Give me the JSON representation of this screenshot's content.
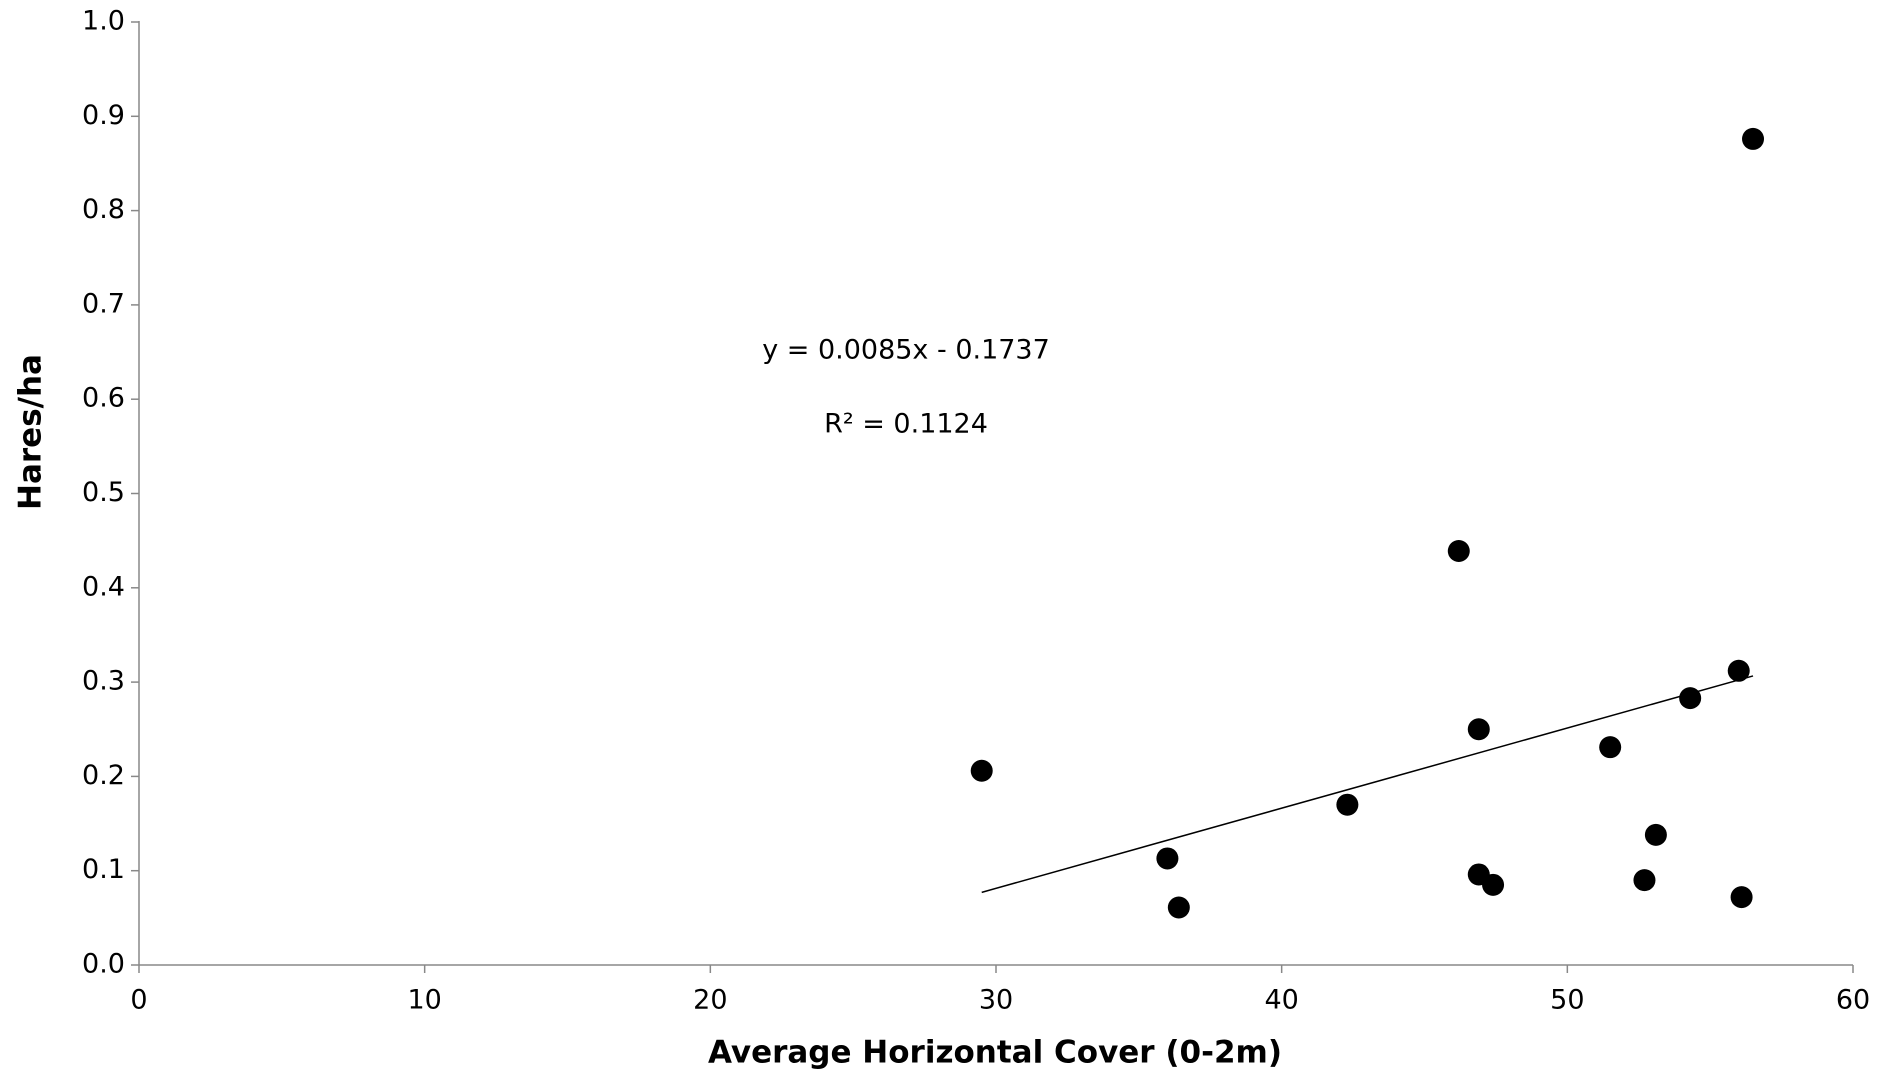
{
  "chart_data": {
    "type": "scatter",
    "x_label": "Average  Horizontal Cover (0-2m)",
    "y_label": "Hares/ha",
    "x": [
      29.5,
      36.0,
      36.4,
      42.3,
      46.2,
      46.9,
      46.9,
      47.4,
      51.5,
      52.7,
      53.1,
      54.3,
      56.0,
      56.1,
      56.5
    ],
    "values": [
      0.206,
      0.113,
      0.061,
      0.17,
      0.439,
      0.25,
      0.096,
      0.085,
      0.231,
      0.09,
      0.138,
      0.283,
      0.312,
      0.072,
      0.876
    ],
    "color": "#000000",
    "trendline": {
      "slope": 0.0085,
      "intercept": -0.1737,
      "color": "#000000"
    },
    "annotations": [
      "y = 0.0085x - 0.1737",
      "R² = 0.1124"
    ],
    "xlim": [
      0,
      60
    ],
    "xticks": [
      0,
      10,
      20,
      30,
      40,
      50,
      60
    ],
    "ylim": [
      0,
      1
    ],
    "yticks": [
      {
        "value": 0,
        "label": "0.0"
      },
      0.1,
      0.2,
      0.3,
      0.4,
      0.5,
      0.6,
      0.7,
      0.8,
      0.9,
      {
        "value": 1,
        "label": "1.0"
      }
    ],
    "grid": false
  }
}
